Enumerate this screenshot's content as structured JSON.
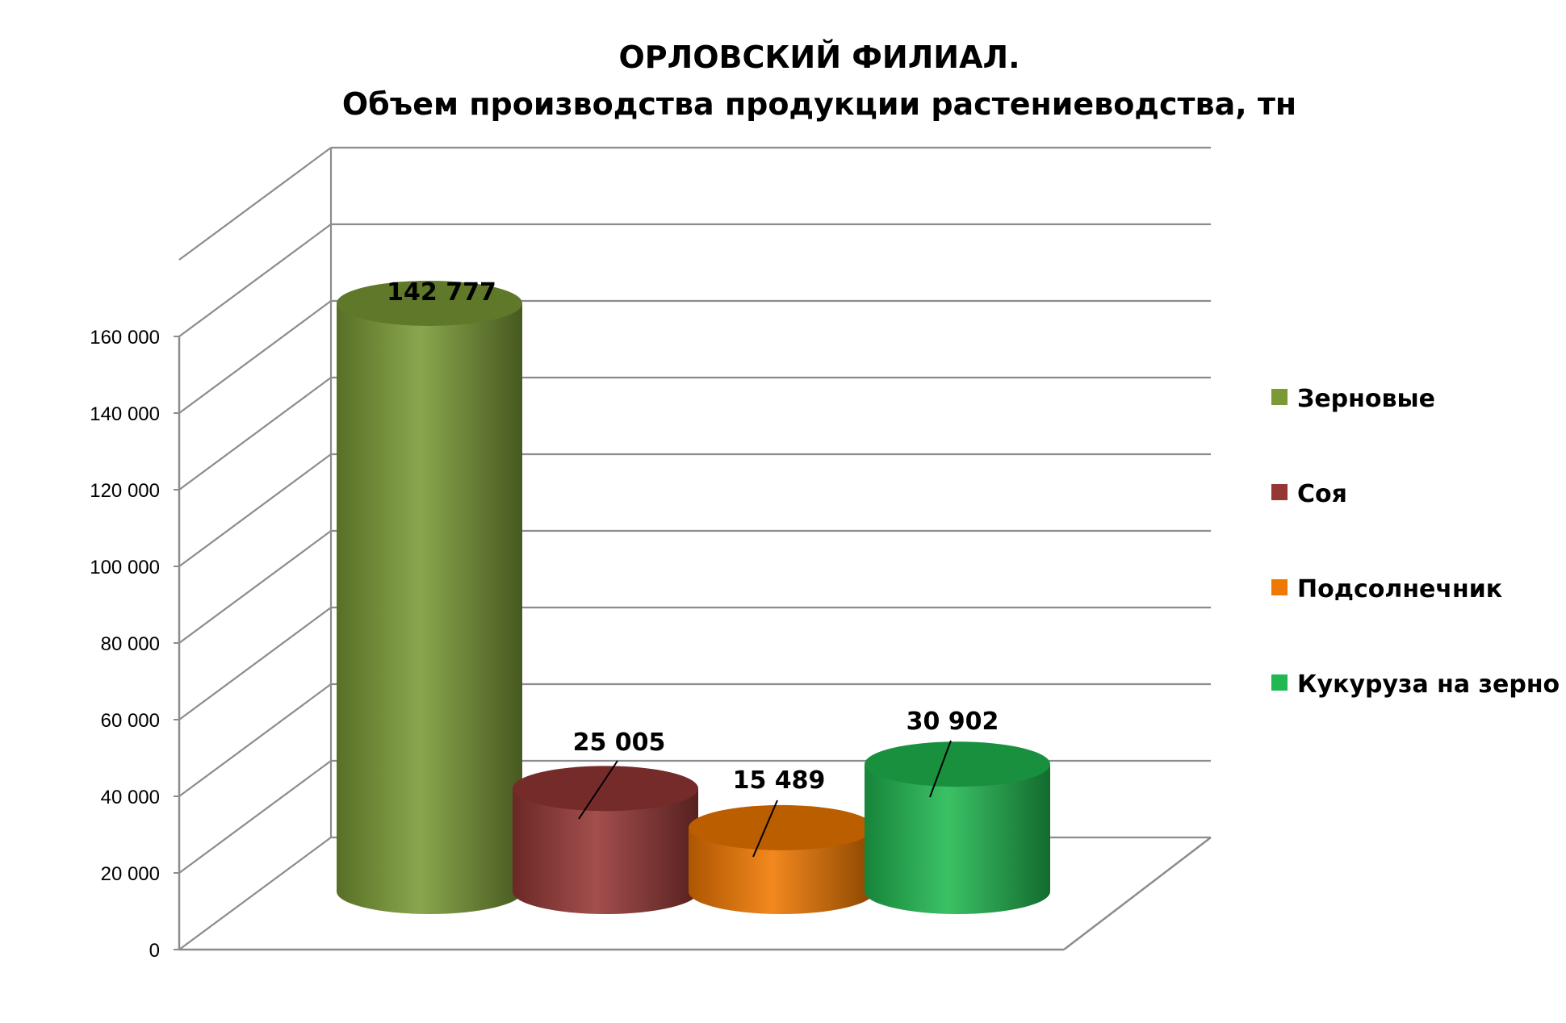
{
  "chart_data": {
    "type": "bar",
    "title": "ОРЛОВСКИЙ ФИЛИАЛ.",
    "subtitle": "Объем производства продукции растениеводства, тн",
    "xlabel": "",
    "ylabel": "",
    "ylim": [
      0,
      160000
    ],
    "y_ticks": [
      0,
      20000,
      40000,
      60000,
      80000,
      100000,
      120000,
      140000,
      160000
    ],
    "y_tick_labels": [
      "0",
      "20 000",
      "40 000",
      "60 000",
      "80 000",
      "100 000",
      "120 000",
      "140 000",
      "160 000"
    ],
    "grid": true,
    "legend_position": "right",
    "three_d": true,
    "series": [
      {
        "name": "Зерновые",
        "value": 142777,
        "label": "142 777",
        "color": "#7a9a35"
      },
      {
        "name": "Соя",
        "value": 25005,
        "label": "25 005",
        "color": "#953735"
      },
      {
        "name": "Подсолнечник",
        "value": 15489,
        "label": "15 489",
        "color": "#f07800"
      },
      {
        "name": "Кукуруза на зерно",
        "value": 30902,
        "label": "30 902",
        "color": "#20b850"
      }
    ]
  }
}
